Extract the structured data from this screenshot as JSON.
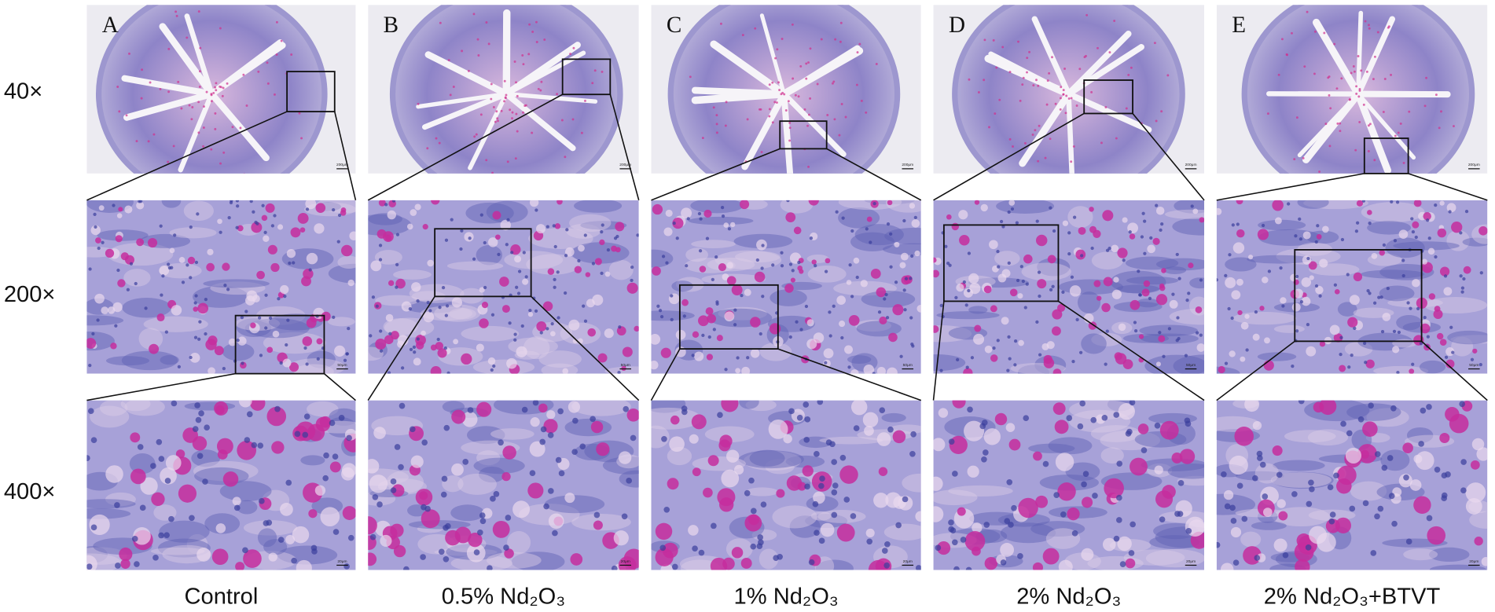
{
  "row_labels": [
    "40×",
    "200×",
    "400×"
  ],
  "panels": [
    {
      "letter": "A",
      "label": "Control"
    },
    {
      "letter": "B",
      "label": "0.5% Nd₂O₃"
    },
    {
      "letter": "C",
      "label": "1% Nd₂O₃"
    },
    {
      "letter": "D",
      "label": "2% Nd₂O₃"
    },
    {
      "letter": "E",
      "label": "2% Nd₂O₃+BTVT"
    }
  ],
  "scale_labels": [
    "200μm",
    "50μm",
    "20μm"
  ]
}
